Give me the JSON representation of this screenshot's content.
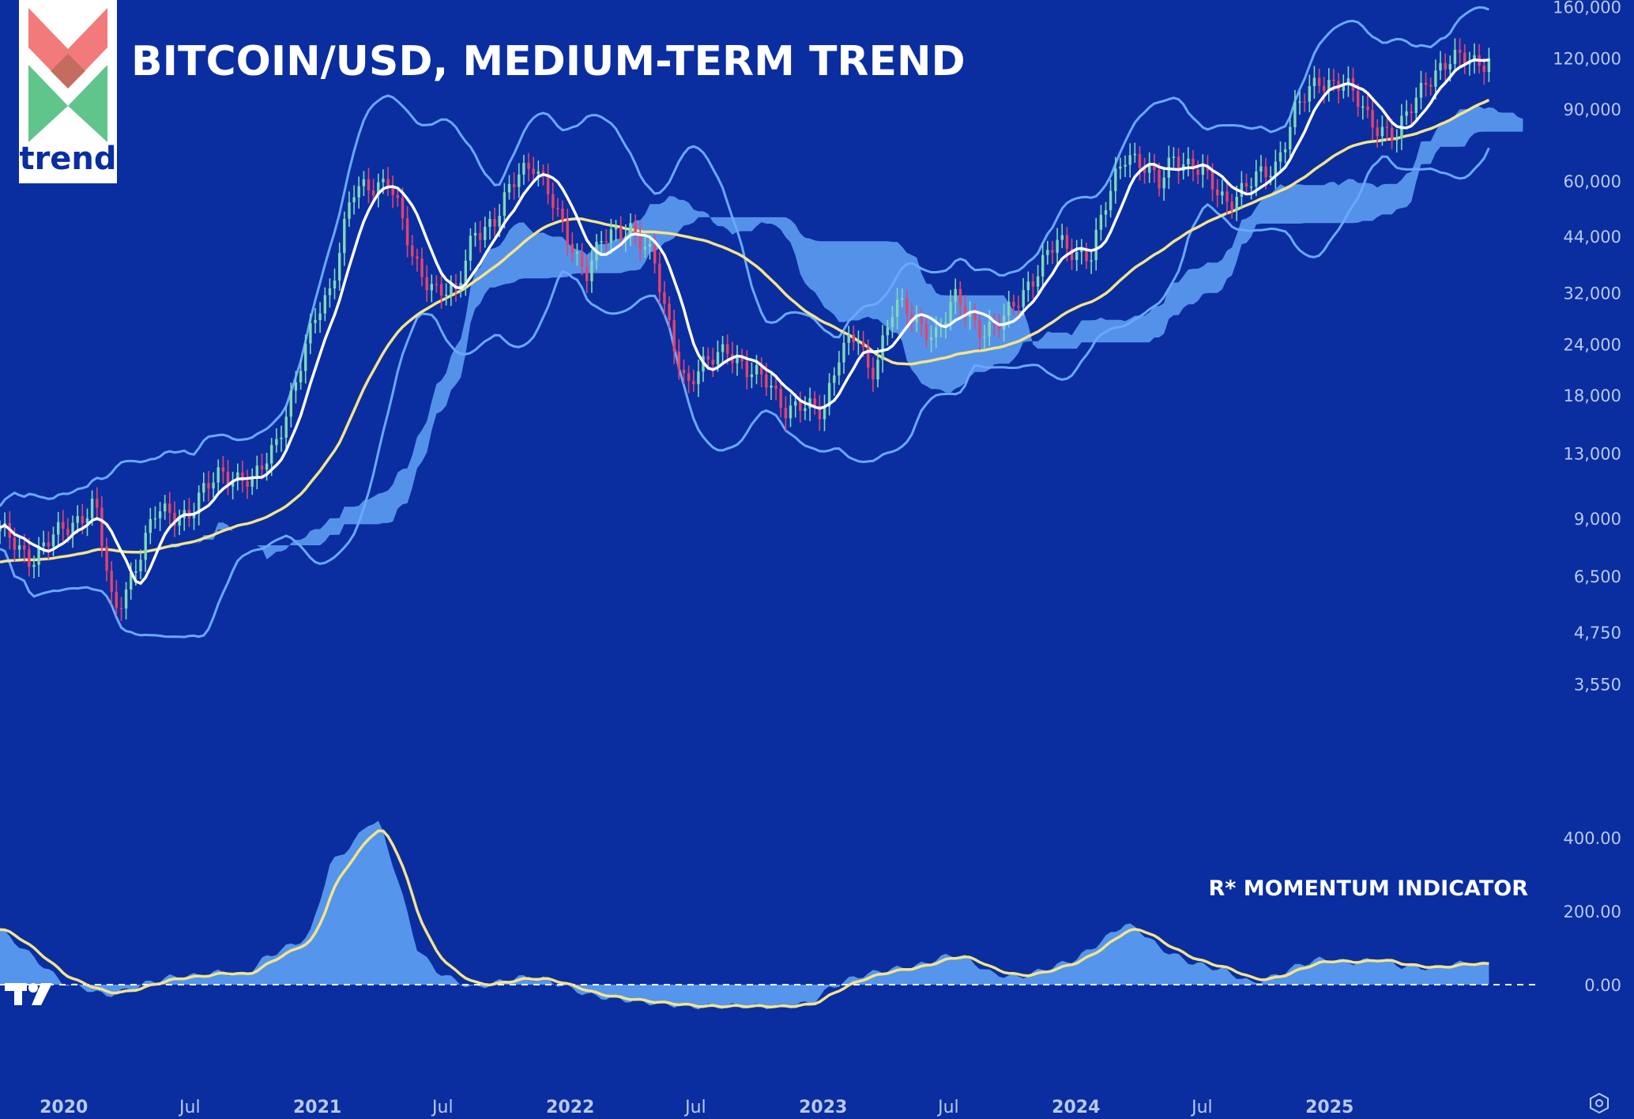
{
  "title": "BITCOIN/USD, MEDIUM-TERM TREND",
  "logo": {
    "word": "trend",
    "colors": {
      "red": "#f26b6b",
      "green": "#4fbf7e",
      "text": "#0a2ea0"
    }
  },
  "indicator_label": "R* MOMENTUM INDICATOR",
  "icons": {
    "settings": "settings-icon",
    "platform_logo": "tradingview-logo-icon"
  },
  "colors": {
    "background": "#0a2ea0",
    "cloud": "#5b9bf0",
    "bollinger": "#6aa8ff",
    "ma_long": "#f4e48a",
    "ma_short": "#ffffff",
    "candle_up": "#7fd9b4",
    "candle_down": "#e8426a",
    "axis_text": "#b8c9f0"
  },
  "chart_data": [
    {
      "type": "candlestick",
      "title": "BITCOIN/USD, MEDIUM-TERM TREND",
      "y_scale": "log",
      "y_ticks": [
        3550,
        4750,
        6500,
        9000,
        13000,
        18000,
        24000,
        32000,
        44000,
        60000,
        90000,
        120000,
        160000
      ],
      "y_tick_labels": [
        "3,550",
        "4,750",
        "6,500",
        "9,000",
        "13,000",
        "18,000",
        "24,000",
        "32,000",
        "44,000",
        "60,000",
        "90,000",
        "120,000",
        "160,000"
      ],
      "x_range": [
        "2019-10-01",
        "2025-09-30"
      ],
      "x_ticks": [
        "2020-01-01",
        "2020-07-01",
        "2021-01-01",
        "2021-07-01",
        "2022-01-01",
        "2022-07-01",
        "2023-01-01",
        "2023-07-01",
        "2024-01-01",
        "2024-07-01",
        "2025-01-01"
      ],
      "x_tick_labels": [
        "2020",
        "Jul",
        "2021",
        "Jul",
        "2022",
        "Jul",
        "2023",
        "Jul",
        "2024",
        "Jul",
        "2025"
      ],
      "close_anchors": [
        [
          "2019-10-01",
          8300
        ],
        [
          "2019-11-15",
          7200
        ],
        [
          "2020-01-15",
          8800
        ],
        [
          "2020-02-15",
          9800
        ],
        [
          "2020-03-13",
          5200
        ],
        [
          "2020-04-15",
          7000
        ],
        [
          "2020-05-15",
          9300
        ],
        [
          "2020-07-01",
          9200
        ],
        [
          "2020-08-15",
          11800
        ],
        [
          "2020-09-30",
          10800
        ],
        [
          "2020-11-01",
          13800
        ],
        [
          "2020-12-01",
          19000
        ],
        [
          "2021-01-01",
          29000
        ],
        [
          "2021-01-20",
          33000
        ],
        [
          "2021-02-20",
          55000
        ],
        [
          "2021-03-15",
          58000
        ],
        [
          "2021-04-14",
          61000
        ],
        [
          "2021-05-19",
          38000
        ],
        [
          "2021-06-20",
          33000
        ],
        [
          "2021-07-20",
          31000
        ],
        [
          "2021-08-15",
          46000
        ],
        [
          "2021-09-15",
          47000
        ],
        [
          "2021-10-20",
          64000
        ],
        [
          "2021-11-10",
          67000
        ],
        [
          "2021-12-15",
          48000
        ],
        [
          "2022-01-24",
          36000
        ],
        [
          "2022-02-15",
          42000
        ],
        [
          "2022-03-28",
          47000
        ],
        [
          "2022-05-01",
          38000
        ],
        [
          "2022-05-15",
          30000
        ],
        [
          "2022-06-18",
          19000
        ],
        [
          "2022-07-15",
          21000
        ],
        [
          "2022-08-15",
          24000
        ],
        [
          "2022-09-15",
          20000
        ],
        [
          "2022-10-15",
          19500
        ],
        [
          "2022-11-10",
          16500
        ],
        [
          "2022-12-31",
          16600
        ],
        [
          "2023-01-25",
          23000
        ],
        [
          "2023-02-20",
          24500
        ],
        [
          "2023-03-10",
          20000
        ],
        [
          "2023-04-14",
          30000
        ],
        [
          "2023-05-15",
          27000
        ],
        [
          "2023-06-15",
          25500
        ],
        [
          "2023-07-10",
          30500
        ],
        [
          "2023-08-20",
          26000
        ],
        [
          "2023-09-15",
          26500
        ],
        [
          "2023-10-25",
          34000
        ],
        [
          "2023-12-05",
          42000
        ],
        [
          "2024-01-23",
          39500
        ],
        [
          "2024-02-28",
          62000
        ],
        [
          "2024-03-14",
          72000
        ],
        [
          "2024-05-01",
          58000
        ],
        [
          "2024-05-20",
          70000
        ],
        [
          "2024-06-30",
          62000
        ],
        [
          "2024-08-05",
          54000
        ],
        [
          "2024-09-01",
          57000
        ],
        [
          "2024-10-15",
          66000
        ],
        [
          "2024-11-12",
          88000
        ],
        [
          "2024-12-17",
          106000
        ],
        [
          "2025-01-20",
          104000
        ],
        [
          "2025-02-25",
          86000
        ],
        [
          "2025-04-08",
          76000
        ],
        [
          "2025-05-21",
          108000
        ],
        [
          "2025-07-14",
          120000
        ],
        [
          "2025-08-15",
          118000
        ]
      ],
      "series": [
        {
          "kind": "candles",
          "frequency": "weekly"
        },
        {
          "kind": "moving_average_short",
          "smoothing_weeks": 8
        },
        {
          "kind": "moving_average_long",
          "smoothing_weeks": 50
        },
        {
          "kind": "bollinger_bands"
        },
        {
          "kind": "ichimoku_cloud"
        }
      ]
    },
    {
      "type": "area",
      "title": "R* MOMENTUM INDICATOR",
      "y_ticks": [
        0,
        200,
        400
      ],
      "y_tick_labels": [
        "0.00",
        "200.00",
        "400.00"
      ],
      "ylim": [
        -120,
        500
      ],
      "zero_line": "dashed",
      "anchors": [
        [
          "2019-10-01",
          150
        ],
        [
          "2019-11-15",
          80
        ],
        [
          "2019-12-31",
          5
        ],
        [
          "2020-02-01",
          -10
        ],
        [
          "2020-03-01",
          -30
        ],
        [
          "2020-04-01",
          -15
        ],
        [
          "2020-05-01",
          5
        ],
        [
          "2020-06-01",
          20
        ],
        [
          "2020-07-15",
          25
        ],
        [
          "2020-08-15",
          35
        ],
        [
          "2020-09-20",
          25
        ],
        [
          "2020-10-15",
          70
        ],
        [
          "2020-11-15",
          100
        ],
        [
          "2020-12-20",
          130
        ],
        [
          "2021-01-20",
          330
        ],
        [
          "2021-02-20",
          380
        ],
        [
          "2021-03-15",
          440
        ],
        [
          "2021-04-01",
          440
        ],
        [
          "2021-04-25",
          300
        ],
        [
          "2021-05-25",
          100
        ],
        [
          "2021-06-20",
          40
        ],
        [
          "2021-07-20",
          10
        ],
        [
          "2021-08-15",
          -10
        ],
        [
          "2021-09-15",
          5
        ],
        [
          "2021-10-20",
          20
        ],
        [
          "2021-11-25",
          15
        ],
        [
          "2021-12-31",
          -10
        ],
        [
          "2022-02-01",
          -30
        ],
        [
          "2022-03-15",
          -40
        ],
        [
          "2022-05-01",
          -50
        ],
        [
          "2022-07-01",
          -60
        ],
        [
          "2022-09-01",
          -58
        ],
        [
          "2022-11-01",
          -60
        ],
        [
          "2022-12-15",
          -50
        ],
        [
          "2023-01-10",
          -10
        ],
        [
          "2023-02-15",
          20
        ],
        [
          "2023-04-01",
          40
        ],
        [
          "2023-05-15",
          50
        ],
        [
          "2023-07-01",
          80
        ],
        [
          "2023-07-20",
          80
        ],
        [
          "2023-09-01",
          30
        ],
        [
          "2023-10-10",
          20
        ],
        [
          "2023-11-15",
          40
        ],
        [
          "2024-01-01",
          70
        ],
        [
          "2024-02-01",
          110
        ],
        [
          "2024-03-10",
          165
        ],
        [
          "2024-04-01",
          150
        ],
        [
          "2024-05-01",
          100
        ],
        [
          "2024-06-15",
          60
        ],
        [
          "2024-08-01",
          40
        ],
        [
          "2024-09-10",
          5
        ],
        [
          "2024-10-10",
          20
        ],
        [
          "2024-11-20",
          55
        ],
        [
          "2024-12-20",
          70
        ],
        [
          "2025-02-01",
          60
        ],
        [
          "2025-03-15",
          70
        ],
        [
          "2025-04-15",
          50
        ],
        [
          "2025-06-01",
          45
        ],
        [
          "2025-07-15",
          60
        ],
        [
          "2025-08-15",
          55
        ]
      ],
      "signal_smoothing_weeks": 6
    }
  ]
}
